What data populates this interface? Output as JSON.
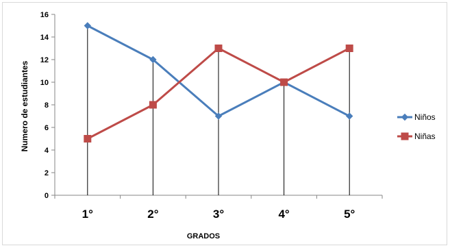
{
  "chart_data": {
    "type": "line",
    "title": "",
    "xlabel": "GRADOS",
    "ylabel": "Numero de estudiantes",
    "categories": [
      "1°",
      "2°",
      "3°",
      "4°",
      "5°"
    ],
    "series": [
      {
        "name": "Niños",
        "values": [
          15,
          12,
          7,
          10,
          7
        ],
        "color": "#4a7ebb",
        "marker": "diamond"
      },
      {
        "name": "Niñas",
        "values": [
          5,
          8,
          13,
          10,
          13
        ],
        "color": "#be4b48",
        "marker": "square"
      }
    ],
    "ylim": [
      0,
      16
    ],
    "yticks": [
      0,
      2,
      4,
      6,
      8,
      10,
      12,
      14,
      16
    ],
    "drop_lines": true,
    "grid": false,
    "legend_position": "right"
  },
  "colors": {
    "axis": "#868686",
    "drop_line": "#000000",
    "text": "#000000"
  }
}
